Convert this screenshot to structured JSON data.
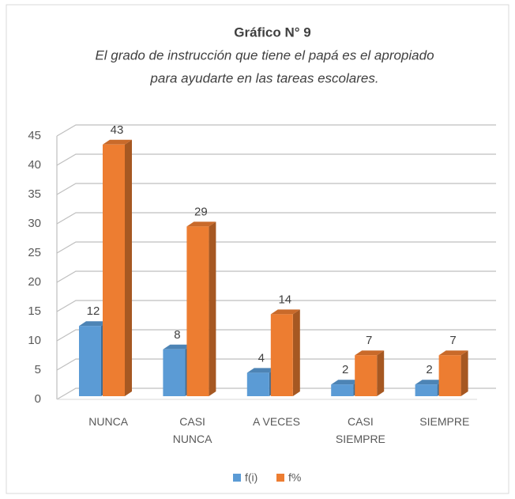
{
  "chart_data": {
    "type": "bar3d",
    "title": "Gráfico N° 9",
    "subtitle": [
      "El grado de instrucción que tiene el papá es el apropiado",
      "para ayudarte en las tareas escolares."
    ],
    "categories": [
      "NUNCA",
      "CASI\nNUNCA",
      "A VECES",
      "CASI\nSIEMPRE",
      "SIEMPRE"
    ],
    "series": [
      {
        "name": "f(i)",
        "color": "#5b9bd5",
        "values": [
          12,
          8,
          4,
          2,
          2
        ]
      },
      {
        "name": "f%",
        "color": "#ed7d31",
        "values": [
          43,
          29,
          14,
          7,
          7
        ]
      }
    ],
    "ylim": [
      0,
      45
    ],
    "yticks": [
      0,
      5,
      10,
      15,
      20,
      25,
      30,
      35,
      40,
      45
    ],
    "grid": true,
    "legend": "bottom"
  }
}
